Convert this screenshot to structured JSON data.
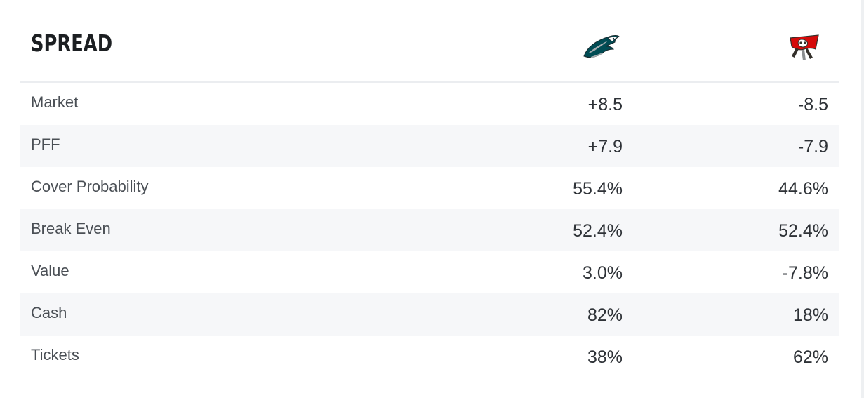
{
  "section": {
    "title": "SPREAD"
  },
  "teams": {
    "away": {
      "icon": "eagles-logo-icon"
    },
    "home": {
      "icon": "buccaneers-logo-icon"
    }
  },
  "rows": [
    {
      "label": "Market",
      "away": "+8.5",
      "home": "-8.5"
    },
    {
      "label": "PFF",
      "away": "+7.9",
      "home": "-7.9"
    },
    {
      "label": "Cover Probability",
      "away": "55.4%",
      "home": "44.6%"
    },
    {
      "label": "Break Even",
      "away": "52.4%",
      "home": "52.4%"
    },
    {
      "label": "Value",
      "away": "3.0%",
      "home": "-7.8%"
    },
    {
      "label": "Cash",
      "away": "82%",
      "home": "18%"
    },
    {
      "label": "Tickets",
      "away": "38%",
      "home": "62%"
    }
  ],
  "colors": {
    "row_alt": "#f6f7f9",
    "divider": "#ebedf0",
    "eagles_green": "#004c54",
    "bucs_red": "#d50a0a"
  }
}
